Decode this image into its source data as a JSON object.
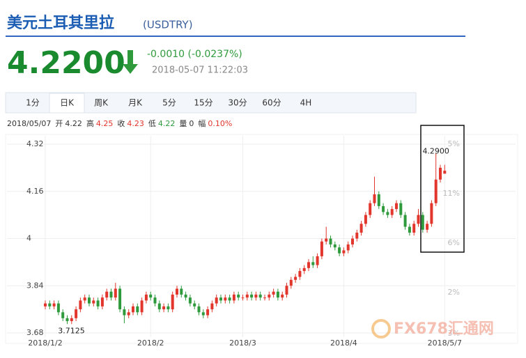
{
  "header": {
    "title": "美元土耳其里拉",
    "symbol": "(USDTRY)",
    "price": "4.2200",
    "change": "-0.0010 (-0.0237%)",
    "time": "2018-05-07 11:22:03"
  },
  "tabs": [
    "1分",
    "日K",
    "周K",
    "月K",
    "5分",
    "15分",
    "30分",
    "60分",
    "4H"
  ],
  "active_tab": 1,
  "info": {
    "date": "2018/05/07",
    "items": [
      {
        "label": "开",
        "value": "4.22"
      },
      {
        "label": "高",
        "value": "4.25"
      },
      {
        "label": "收",
        "value": "4.23"
      },
      {
        "label": "低",
        "value": "4.22"
      },
      {
        "label": "量",
        "value": "0"
      },
      {
        "label": "幅",
        "value": "0.10%"
      }
    ]
  },
  "watermark": "FX678汇通网",
  "chart_data": {
    "type": "candlestick",
    "categories": [
      "2018/1/2",
      null,
      null,
      null,
      null,
      null,
      null,
      null,
      null,
      null,
      null,
      null,
      null,
      null,
      null,
      null,
      null,
      null,
      null,
      null,
      null,
      null,
      null,
      null,
      "2018/2",
      null,
      null,
      null,
      null,
      null,
      null,
      null,
      null,
      null,
      null,
      null,
      null,
      null,
      null,
      null,
      null,
      null,
      null,
      null,
      null,
      "2018/3",
      null,
      null,
      null,
      null,
      null,
      null,
      null,
      null,
      null,
      null,
      null,
      null,
      null,
      null,
      null,
      null,
      null,
      null,
      null,
      null,
      null,
      null,
      "2018/4",
      null,
      null,
      null,
      null,
      null,
      null,
      null,
      null,
      null,
      null,
      null,
      null,
      null,
      null,
      null,
      null,
      null,
      null,
      null,
      null,
      null,
      null,
      "2018/5/7"
    ],
    "open": [
      3.77,
      3.78,
      3.77,
      3.78,
      3.75,
      3.73,
      3.72,
      3.73,
      3.76,
      3.79,
      3.8,
      3.78,
      3.79,
      3.77,
      3.8,
      3.82,
      3.8,
      3.83,
      3.76,
      3.74,
      3.75,
      3.77,
      3.75,
      3.79,
      3.81,
      3.8,
      3.78,
      3.76,
      3.77,
      3.76,
      3.81,
      3.83,
      3.81,
      3.8,
      3.78,
      3.77,
      3.75,
      3.74,
      3.76,
      3.78,
      3.8,
      3.79,
      3.8,
      3.79,
      3.81,
      3.8,
      3.8,
      3.81,
      3.8,
      3.81,
      3.8,
      3.8,
      3.81,
      3.82,
      3.8,
      3.81,
      3.84,
      3.86,
      3.87,
      3.89,
      3.9,
      3.92,
      3.91,
      3.94,
      3.99,
      4.0,
      3.98,
      3.97,
      3.95,
      3.96,
      3.98,
      4.0,
      4.02,
      4.05,
      4.08,
      4.12,
      4.15,
      4.11,
      4.09,
      4.08,
      4.1,
      4.12,
      4.08,
      4.04,
      4.02,
      4.05,
      4.08,
      4.03,
      4.05,
      4.12,
      4.2,
      4.22
    ],
    "high": [
      3.79,
      3.79,
      3.79,
      3.79,
      3.76,
      3.74,
      3.74,
      3.77,
      3.8,
      3.81,
      3.81,
      3.8,
      3.8,
      3.81,
      3.83,
      3.83,
      3.85,
      3.84,
      3.77,
      3.76,
      3.78,
      3.78,
      3.8,
      3.82,
      3.82,
      3.81,
      3.79,
      3.78,
      3.78,
      3.82,
      3.84,
      3.84,
      3.82,
      3.81,
      3.79,
      3.78,
      3.76,
      3.77,
      3.79,
      3.81,
      3.81,
      3.81,
      3.81,
      3.82,
      3.82,
      3.81,
      3.82,
      3.82,
      3.82,
      3.82,
      3.81,
      3.82,
      3.83,
      3.83,
      3.82,
      3.85,
      3.87,
      3.88,
      3.9,
      3.91,
      3.93,
      3.94,
      3.95,
      4.0,
      4.04,
      4.01,
      3.99,
      3.98,
      3.97,
      3.99,
      4.01,
      4.03,
      4.06,
      4.09,
      4.13,
      4.21,
      4.16,
      4.12,
      4.1,
      4.11,
      4.13,
      4.13,
      4.09,
      4.05,
      4.06,
      4.1,
      4.09,
      4.06,
      4.13,
      4.29,
      4.25,
      4.25
    ],
    "low": [
      3.76,
      3.76,
      3.76,
      3.74,
      3.72,
      3.71,
      3.71,
      3.72,
      3.75,
      3.78,
      3.77,
      3.77,
      3.76,
      3.76,
      3.79,
      3.79,
      3.79,
      3.75,
      3.7125,
      3.73,
      3.74,
      3.74,
      3.74,
      3.78,
      3.79,
      3.77,
      3.75,
      3.75,
      3.75,
      3.75,
      3.8,
      3.8,
      3.79,
      3.77,
      3.76,
      3.74,
      3.73,
      3.73,
      3.75,
      3.77,
      3.78,
      3.78,
      3.78,
      3.78,
      3.79,
      3.79,
      3.79,
      3.79,
      3.79,
      3.79,
      3.79,
      3.79,
      3.8,
      3.79,
      3.79,
      3.8,
      3.83,
      3.85,
      3.86,
      3.88,
      3.89,
      3.9,
      3.9,
      3.93,
      3.98,
      3.97,
      3.96,
      3.94,
      3.94,
      3.95,
      3.97,
      3.99,
      4.01,
      4.04,
      4.07,
      4.11,
      4.1,
      4.08,
      4.07,
      4.07,
      4.09,
      4.07,
      4.03,
      4.01,
      4.01,
      4.04,
      4.02,
      4.02,
      4.04,
      4.11,
      4.19,
      4.22
    ],
    "close": [
      3.78,
      3.77,
      3.78,
      3.75,
      3.73,
      3.72,
      3.73,
      3.76,
      3.79,
      3.8,
      3.78,
      3.79,
      3.77,
      3.8,
      3.82,
      3.8,
      3.83,
      3.76,
      3.74,
      3.75,
      3.77,
      3.75,
      3.79,
      3.81,
      3.8,
      3.78,
      3.76,
      3.77,
      3.76,
      3.81,
      3.83,
      3.81,
      3.8,
      3.78,
      3.77,
      3.75,
      3.74,
      3.76,
      3.78,
      3.8,
      3.79,
      3.8,
      3.79,
      3.81,
      3.8,
      3.8,
      3.81,
      3.8,
      3.81,
      3.8,
      3.8,
      3.81,
      3.82,
      3.8,
      3.81,
      3.84,
      3.86,
      3.87,
      3.89,
      3.9,
      3.92,
      3.91,
      3.94,
      3.99,
      4.0,
      3.98,
      3.97,
      3.95,
      3.96,
      3.98,
      4.0,
      4.02,
      4.05,
      4.08,
      4.12,
      4.15,
      4.11,
      4.09,
      4.08,
      4.1,
      4.12,
      4.08,
      4.04,
      4.02,
      4.05,
      4.08,
      4.03,
      4.05,
      4.12,
      4.2,
      4.24,
      4.23
    ],
    "up_color": "#e2352b",
    "down_color": "#2e9a3c",
    "ylim": [
      3.68,
      4.32
    ],
    "yticks": [
      3.68,
      3.84,
      4,
      4.16,
      4.32
    ],
    "grid": true,
    "low_label": "3.7125",
    "high_label": "4.2900",
    "right_labels": [
      "5%",
      "11%",
      "6%",
      "2%",
      "3%"
    ]
  }
}
